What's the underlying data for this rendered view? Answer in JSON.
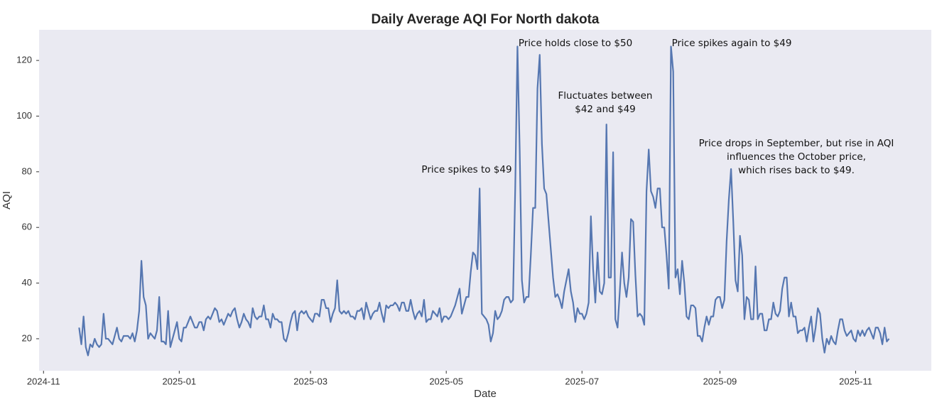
{
  "chart_data": {
    "type": "line",
    "title": "Daily Average AQI For North dakota",
    "xlabel": "Date",
    "ylabel": "AQI",
    "color": "#5677b1",
    "xlim": [
      "2024-10-30",
      "2025-12-05"
    ],
    "ylim": [
      8.5,
      131
    ],
    "xticks": [
      {
        "value": "2024-11-01",
        "label": "2024-11"
      },
      {
        "value": "2025-01-01",
        "label": "2025-01"
      },
      {
        "value": "2025-03-01",
        "label": "2025-03"
      },
      {
        "value": "2025-05-01",
        "label": "2025-05"
      },
      {
        "value": "2025-07-01",
        "label": "2025-07"
      },
      {
        "value": "2025-09-01",
        "label": "2025-09"
      },
      {
        "value": "2025-11-01",
        "label": "2025-11"
      }
    ],
    "yticks": [
      20,
      40,
      60,
      80,
      100,
      120
    ],
    "annotations": [
      [
        "Price spikes to $49"
      ],
      [
        "Price holds close to $50"
      ],
      [
        "Fluctuates between",
        "$42 and $49"
      ],
      [
        "Price spikes again to $49"
      ],
      [
        "Price drops in September, but rise in AQI",
        "influences the October price,",
        "which rises back to $49."
      ]
    ],
    "x": [
      "2024-11-17",
      "2024-11-18",
      "2024-11-19",
      "2024-11-20",
      "2024-11-21",
      "2024-11-22",
      "2024-11-23",
      "2024-11-24",
      "2024-11-25",
      "2024-11-26",
      "2024-11-27",
      "2024-11-28",
      "2024-11-29",
      "2024-11-30",
      "2024-12-01",
      "2024-12-02",
      "2024-12-03",
      "2024-12-04",
      "2024-12-05",
      "2024-12-06",
      "2024-12-07",
      "2024-12-08",
      "2024-12-09",
      "2024-12-10",
      "2024-12-11",
      "2024-12-12",
      "2024-12-13",
      "2024-12-14",
      "2024-12-15",
      "2024-12-16",
      "2024-12-17",
      "2024-12-18",
      "2024-12-19",
      "2024-12-20",
      "2024-12-21",
      "2024-12-22",
      "2024-12-23",
      "2024-12-24",
      "2024-12-25",
      "2024-12-26",
      "2024-12-27",
      "2024-12-28",
      "2024-12-29",
      "2024-12-30",
      "2024-12-31",
      "2025-01-01",
      "2025-01-02",
      "2025-01-03",
      "2025-01-04",
      "2025-01-05",
      "2025-01-06",
      "2025-01-07",
      "2025-01-08",
      "2025-01-09",
      "2025-01-10",
      "2025-01-11",
      "2025-01-12",
      "2025-01-13",
      "2025-01-14",
      "2025-01-15",
      "2025-01-16",
      "2025-01-17",
      "2025-01-18",
      "2025-01-19",
      "2025-01-20",
      "2025-01-21",
      "2025-01-22",
      "2025-01-23",
      "2025-01-24",
      "2025-01-25",
      "2025-01-26",
      "2025-01-27",
      "2025-01-28",
      "2025-01-29",
      "2025-01-30",
      "2025-01-31",
      "2025-02-01",
      "2025-02-02",
      "2025-02-03",
      "2025-02-04",
      "2025-02-05",
      "2025-02-06",
      "2025-02-07",
      "2025-02-08",
      "2025-02-09",
      "2025-02-10",
      "2025-02-11",
      "2025-02-12",
      "2025-02-13",
      "2025-02-14",
      "2025-02-15",
      "2025-02-16",
      "2025-02-17",
      "2025-02-18",
      "2025-02-19",
      "2025-02-20",
      "2025-02-21",
      "2025-02-22",
      "2025-02-23",
      "2025-02-24",
      "2025-02-25",
      "2025-02-26",
      "2025-02-27",
      "2025-02-28",
      "2025-03-01",
      "2025-03-02",
      "2025-03-03",
      "2025-03-04",
      "2025-03-05",
      "2025-03-06",
      "2025-03-07",
      "2025-03-08",
      "2025-03-09",
      "2025-03-10",
      "2025-03-11",
      "2025-03-12",
      "2025-03-13",
      "2025-03-14",
      "2025-03-15",
      "2025-03-16",
      "2025-03-17",
      "2025-03-18",
      "2025-03-19",
      "2025-03-20",
      "2025-03-21",
      "2025-03-22",
      "2025-03-23",
      "2025-03-24",
      "2025-03-25",
      "2025-03-26",
      "2025-03-27",
      "2025-03-28",
      "2025-03-29",
      "2025-03-30",
      "2025-03-31",
      "2025-04-01",
      "2025-04-02",
      "2025-04-03",
      "2025-04-04",
      "2025-04-05",
      "2025-04-06",
      "2025-04-07",
      "2025-04-08",
      "2025-04-09",
      "2025-04-10",
      "2025-04-11",
      "2025-04-12",
      "2025-04-13",
      "2025-04-14",
      "2025-04-15",
      "2025-04-16",
      "2025-04-17",
      "2025-04-18",
      "2025-04-19",
      "2025-04-20",
      "2025-04-21",
      "2025-04-22",
      "2025-04-23",
      "2025-04-24",
      "2025-04-25",
      "2025-04-26",
      "2025-04-27",
      "2025-04-28",
      "2025-04-29",
      "2025-04-30",
      "2025-05-01",
      "2025-05-02",
      "2025-05-03",
      "2025-05-04",
      "2025-05-05",
      "2025-05-06",
      "2025-05-07",
      "2025-05-08",
      "2025-05-09",
      "2025-05-10",
      "2025-05-11",
      "2025-05-12",
      "2025-05-13",
      "2025-05-14",
      "2025-05-15",
      "2025-05-16",
      "2025-05-17",
      "2025-05-18",
      "2025-05-19",
      "2025-05-20",
      "2025-05-21",
      "2025-05-22",
      "2025-05-23",
      "2025-05-24",
      "2025-05-25",
      "2025-05-26",
      "2025-05-27",
      "2025-05-28",
      "2025-05-29",
      "2025-05-30",
      "2025-05-31",
      "2025-06-01",
      "2025-06-02",
      "2025-06-03",
      "2025-06-04",
      "2025-06-05",
      "2025-06-06",
      "2025-06-07",
      "2025-06-08",
      "2025-06-09",
      "2025-06-10",
      "2025-06-11",
      "2025-06-12",
      "2025-06-13",
      "2025-06-14",
      "2025-06-15",
      "2025-06-16",
      "2025-06-17",
      "2025-06-18",
      "2025-06-19",
      "2025-06-20",
      "2025-06-21",
      "2025-06-22",
      "2025-06-23",
      "2025-06-24",
      "2025-06-25",
      "2025-06-26",
      "2025-06-27",
      "2025-06-28",
      "2025-06-29",
      "2025-06-30",
      "2025-07-01",
      "2025-07-02",
      "2025-07-03",
      "2025-07-04",
      "2025-07-05",
      "2025-07-06",
      "2025-07-07",
      "2025-07-08",
      "2025-07-09",
      "2025-07-10",
      "2025-07-11",
      "2025-07-12",
      "2025-07-13",
      "2025-07-14",
      "2025-07-15",
      "2025-07-16",
      "2025-07-17",
      "2025-07-18",
      "2025-07-19",
      "2025-07-20",
      "2025-07-21",
      "2025-07-22",
      "2025-07-23",
      "2025-07-24",
      "2025-07-25",
      "2025-07-26",
      "2025-07-27",
      "2025-07-28",
      "2025-07-29",
      "2025-07-30",
      "2025-07-31",
      "2025-08-01",
      "2025-08-02",
      "2025-08-03",
      "2025-08-04",
      "2025-08-05",
      "2025-08-06",
      "2025-08-07",
      "2025-08-08",
      "2025-08-09",
      "2025-08-10",
      "2025-08-11",
      "2025-08-12",
      "2025-08-13",
      "2025-08-14",
      "2025-08-15",
      "2025-08-16",
      "2025-08-17",
      "2025-08-18",
      "2025-08-19",
      "2025-08-20",
      "2025-08-21",
      "2025-08-22",
      "2025-08-23",
      "2025-08-24",
      "2025-08-25",
      "2025-08-26",
      "2025-08-27",
      "2025-08-28",
      "2025-08-29",
      "2025-08-30",
      "2025-08-31",
      "2025-09-01",
      "2025-09-02",
      "2025-09-03",
      "2025-09-04",
      "2025-09-05",
      "2025-09-06",
      "2025-09-07",
      "2025-09-08",
      "2025-09-09",
      "2025-09-10",
      "2025-09-11",
      "2025-09-12",
      "2025-09-13",
      "2025-09-14",
      "2025-09-15",
      "2025-09-16",
      "2025-09-17",
      "2025-09-18",
      "2025-09-19",
      "2025-09-20",
      "2025-09-21",
      "2025-09-22",
      "2025-09-23",
      "2025-09-24",
      "2025-09-25",
      "2025-09-26",
      "2025-09-27",
      "2025-09-28",
      "2025-09-29",
      "2025-09-30",
      "2025-10-01",
      "2025-10-02",
      "2025-10-03",
      "2025-10-04",
      "2025-10-05",
      "2025-10-06",
      "2025-10-07",
      "2025-10-08",
      "2025-10-09",
      "2025-10-10",
      "2025-10-11",
      "2025-10-12",
      "2025-10-13",
      "2025-10-14",
      "2025-10-15",
      "2025-10-16",
      "2025-10-17",
      "2025-10-18",
      "2025-10-19",
      "2025-10-20",
      "2025-10-21",
      "2025-10-22",
      "2025-10-23",
      "2025-10-24",
      "2025-10-25",
      "2025-10-26",
      "2025-10-27",
      "2025-10-28",
      "2025-10-29",
      "2025-10-30",
      "2025-10-31",
      "2025-11-01",
      "2025-11-02",
      "2025-11-03",
      "2025-11-04",
      "2025-11-05",
      "2025-11-06",
      "2025-11-07",
      "2025-11-08",
      "2025-11-09",
      "2025-11-10",
      "2025-11-11",
      "2025-11-12",
      "2025-11-13",
      "2025-11-14",
      "2025-11-15",
      "2025-11-16"
    ],
    "values": [
      24,
      18,
      28,
      17,
      14,
      18,
      17,
      20,
      18,
      17,
      18,
      29,
      20,
      20,
      19,
      18,
      21,
      24,
      20,
      19,
      21,
      21,
      21,
      20,
      22,
      19,
      23,
      30,
      48,
      35,
      32,
      20,
      22,
      21,
      20,
      23,
      35,
      19,
      19,
      18,
      30,
      17,
      20,
      23,
      26,
      20,
      19,
      24,
      24,
      26,
      28,
      26,
      24,
      24,
      26,
      26,
      23,
      27,
      28,
      27,
      29,
      31,
      30,
      26,
      27,
      25,
      27,
      29,
      28,
      30,
      31,
      27,
      24,
      26,
      29,
      27,
      26,
      24,
      31,
      28,
      27,
      28,
      28,
      32,
      27,
      27,
      24,
      29,
      27,
      27,
      26,
      26,
      20,
      19,
      22,
      26,
      29,
      30,
      23,
      29,
      30,
      29,
      30,
      28,
      27,
      26,
      29,
      29,
      28,
      34,
      34,
      31,
      31,
      26,
      29,
      31,
      41,
      30,
      29,
      30,
      29,
      30,
      28,
      28,
      27,
      30,
      30,
      31,
      27,
      33,
      30,
      27,
      29,
      30,
      30,
      33,
      29,
      26,
      32,
      31,
      32,
      32,
      33,
      32,
      30,
      33,
      33,
      30,
      30,
      34,
      30,
      27,
      29,
      30,
      28,
      34,
      26,
      27,
      27,
      30,
      29,
      28,
      31,
      26,
      28,
      28,
      27,
      28,
      30,
      32,
      35,
      38,
      29,
      32,
      35,
      35,
      44,
      51,
      50,
      45,
      74,
      29,
      28,
      27,
      25,
      19,
      22,
      30,
      27,
      28,
      30,
      34,
      35,
      35,
      33,
      34,
      74,
      125,
      88,
      41,
      33,
      35,
      35,
      50,
      67,
      67,
      110,
      122,
      90,
      74,
      72,
      62,
      52,
      42,
      35,
      36,
      34,
      31,
      37,
      41,
      45,
      37,
      33,
      26,
      31,
      29,
      29,
      27,
      29,
      33,
      64,
      45,
      33,
      51,
      37,
      36,
      40,
      97,
      42,
      42,
      87,
      27,
      24,
      37,
      51,
      40,
      35,
      42,
      63,
      62,
      43,
      28,
      29,
      28,
      25,
      73,
      88,
      73,
      71,
      67,
      74,
      74,
      60,
      60,
      50,
      38,
      125,
      116,
      42,
      45,
      36,
      48,
      40,
      28,
      27,
      32,
      32,
      31,
      21,
      21,
      19,
      24,
      28,
      25,
      28,
      28,
      34,
      35,
      35,
      31,
      34,
      55,
      70,
      81,
      62,
      41,
      37,
      57,
      50,
      27,
      35,
      34,
      27,
      27,
      46,
      27,
      29,
      29,
      23,
      23,
      27,
      27,
      33,
      29,
      28,
      30,
      38,
      42,
      42,
      28,
      33,
      28,
      28,
      22,
      23,
      23,
      24,
      19,
      24,
      28,
      19,
      24,
      31,
      29,
      20,
      15,
      20,
      18,
      21,
      19,
      18,
      23,
      27,
      27,
      23,
      21,
      22,
      23,
      20,
      19,
      23,
      21,
      23,
      21,
      23,
      24,
      22,
      20,
      24,
      24,
      22,
      18,
      24,
      19,
      20
    ]
  }
}
